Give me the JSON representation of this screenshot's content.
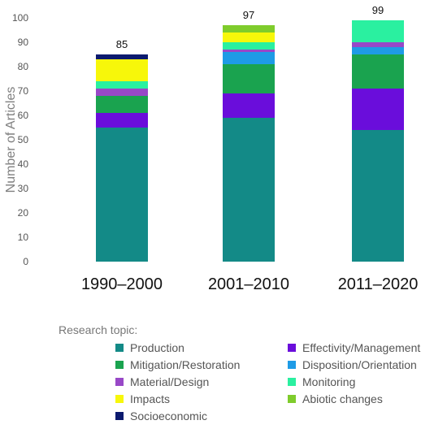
{
  "chart_data": {
    "type": "bar",
    "stacked": true,
    "categories": [
      "1990–2000",
      "2001–2010",
      "2011–2020"
    ],
    "totals": [
      85,
      97,
      99
    ],
    "ylabel": "Number of Articles",
    "ylim": [
      0,
      100
    ],
    "yticks": [
      0,
      10,
      20,
      30,
      40,
      50,
      60,
      70,
      80,
      90,
      100
    ],
    "grid": false,
    "legend_title": "Research topic:",
    "legend_position": "bottom",
    "series": [
      {
        "name": "Production",
        "color": "#138A87",
        "values": [
          55,
          59,
          54
        ]
      },
      {
        "name": "Effectivity/Management",
        "color": "#6A0DDB",
        "values": [
          6,
          10,
          17
        ]
      },
      {
        "name": "Mitigation/Restoration",
        "color": "#1AA34F",
        "values": [
          7,
          12,
          14
        ]
      },
      {
        "name": "Disposition/Orientation",
        "color": "#1E9BE6",
        "values": [
          0,
          5,
          3
        ]
      },
      {
        "name": "Material/Design",
        "color": "#9848C7",
        "values": [
          3,
          1,
          2
        ]
      },
      {
        "name": "Monitoring",
        "color": "#2AF0A0",
        "values": [
          3,
          3,
          9
        ]
      },
      {
        "name": "Impacts",
        "color": "#F7F70A",
        "values": [
          9,
          4,
          0
        ]
      },
      {
        "name": "Abiotic changes",
        "color": "#7FCC2C",
        "values": [
          0,
          3,
          0
        ]
      },
      {
        "name": "Socioeconomic",
        "color": "#0B1A6E",
        "values": [
          2,
          0,
          0
        ]
      }
    ]
  }
}
